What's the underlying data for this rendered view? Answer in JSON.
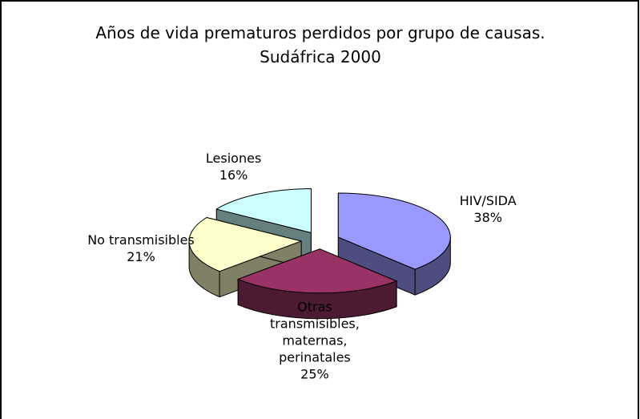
{
  "chart_data": {
    "type": "pie3d",
    "title": "Años de vida prematuros perdidos por grupo de causas. Sudáfrica 2000",
    "categories": [
      "HIV/SIDA",
      "Otras transmisibles, maternas, perinatales",
      "No transmisibles",
      "Lesiones"
    ],
    "values": [
      38,
      25,
      21,
      16
    ],
    "value_labels": [
      "38%",
      "25%",
      "21%",
      "16%"
    ],
    "colors": [
      "#9999ff",
      "#993366",
      "#ffffcc",
      "#ccffff"
    ]
  }
}
